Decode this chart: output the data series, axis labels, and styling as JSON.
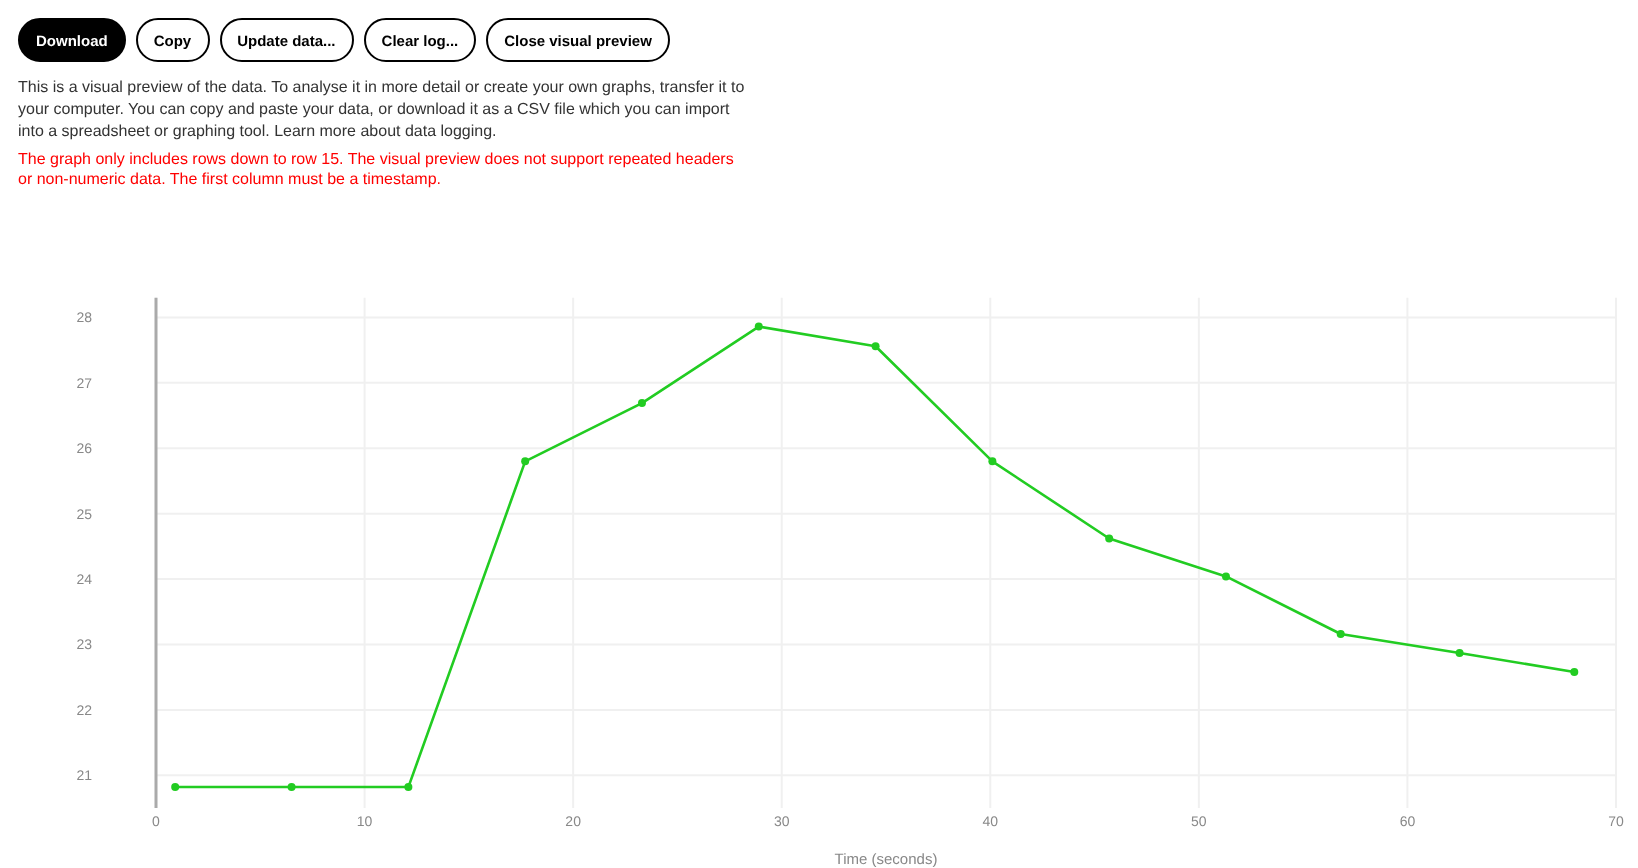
{
  "chart_data": {
    "type": "line",
    "xlabel": "Time (seconds)",
    "annotations": [
      "Download",
      "Copy",
      "Update data...",
      "Clear log...",
      "Close visual preview",
      "This is a visual preview of the data. To analyse it in more detail or create your own graphs, transfer it to your computer. You can copy and paste your data, or download it as a CSV file which you can import into a spreadsheet or graphing tool. Learn more about data logging.",
      "The graph only includes rows down to row 15. The visual preview does not support repeated headers or non-numeric data. The first column must be a timestamp."
    ],
    "series": [
      {
        "color": "#22cc22",
        "x": [
          0.92,
          6.5,
          12.1,
          17.7,
          23.3,
          28.9,
          34.5,
          40.1,
          45.7,
          51.3,
          56.8,
          62.5,
          68.0
        ],
        "values": [
          20.82,
          20.82,
          20.82,
          25.8,
          26.69,
          27.86,
          27.56,
          25.8,
          24.62,
          24.04,
          23.16,
          22.87,
          22.58
        ]
      }
    ],
    "xlim": [
      0,
      70
    ],
    "xticks": [
      0,
      10,
      20,
      30,
      40,
      50,
      60,
      70
    ],
    "ylim": [
      20.5,
      28.3
    ],
    "yticks": [
      21,
      22,
      23,
      24,
      25,
      26,
      27,
      28
    ],
    "grid": true,
    "marker": "circle",
    "line_style": "solid"
  }
}
